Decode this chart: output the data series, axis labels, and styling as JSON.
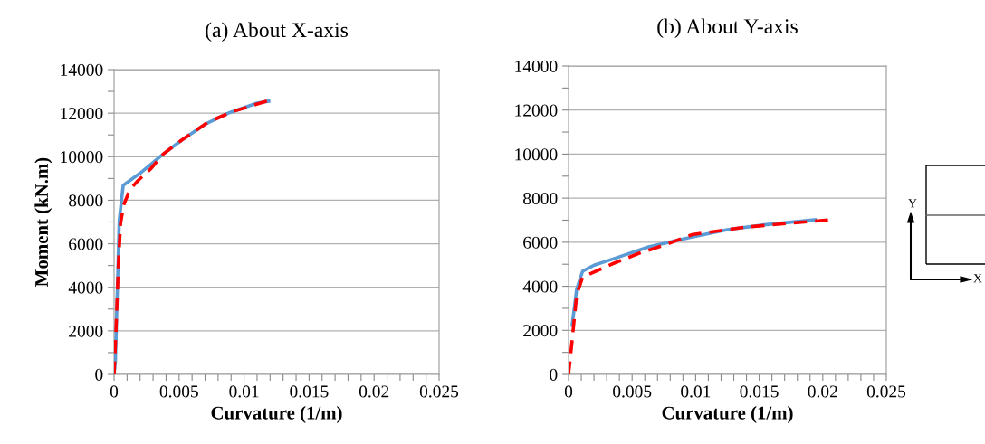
{
  "chart_data": [
    {
      "type": "line",
      "title": "(a) About X-axis",
      "xlabel": "Curvature (1/m)",
      "ylabel": "Moment (kN.m)",
      "grid": "y",
      "legend": false,
      "tick_labels": "xy",
      "xlim": [
        0,
        0.025
      ],
      "ylim": [
        0,
        14000
      ],
      "xticks": [
        0,
        0.005,
        0.01,
        0.015,
        0.02,
        0.025,
        {
          "value": 0.001,
          "label": null
        },
        {
          "value": 0.002,
          "label": null
        },
        {
          "value": 0.003,
          "label": null
        },
        {
          "value": 0.004,
          "label": null
        },
        {
          "value": 0.006,
          "label": null
        },
        {
          "value": 0.007,
          "label": null
        },
        {
          "value": 0.008,
          "label": null
        },
        {
          "value": 0.009,
          "label": null
        },
        {
          "value": 0.011,
          "label": null
        },
        {
          "value": 0.012,
          "label": null
        },
        {
          "value": 0.013,
          "label": null
        },
        {
          "value": 0.014,
          "label": null
        },
        {
          "value": 0.016,
          "label": null
        },
        {
          "value": 0.017,
          "label": null
        },
        {
          "value": 0.018,
          "label": null
        },
        {
          "value": 0.019,
          "label": null
        },
        {
          "value": 0.021,
          "label": null
        },
        {
          "value": 0.022,
          "label": null
        },
        {
          "value": 0.023,
          "label": null
        },
        {
          "value": 0.024,
          "label": null
        }
      ],
      "yticks": [
        0,
        2000,
        4000,
        6000,
        8000,
        10000,
        12000,
        14000,
        {
          "value": 1000,
          "label": null
        },
        {
          "value": 3000,
          "label": null
        },
        {
          "value": 5000,
          "label": null
        },
        {
          "value": 7000,
          "label": null
        },
        {
          "value": 9000,
          "label": null
        },
        {
          "value": 11000,
          "label": null
        },
        {
          "value": 13000,
          "label": null
        }
      ],
      "series": [
        {
          "color": "#5b9bd5",
          "line_style": "solid",
          "x": [
            0,
            0.0001,
            0.0004,
            0.0007,
            0.002,
            0.0038,
            0.0052,
            0.007,
            0.0089,
            0.011,
            0.0119
          ],
          "values": [
            0,
            580,
            7090,
            8680,
            9240,
            10130,
            10760,
            11490,
            12030,
            12460,
            12550
          ]
        },
        {
          "color": "#ff0000",
          "line_style": "dashed",
          "x": [
            0,
            0.00016,
            0.00033,
            0.0005,
            0.00074,
            0.0012,
            0.0018,
            0.0028,
            0.0038,
            0.0052,
            0.0072,
            0.0091,
            0.012
          ],
          "values": [
            0,
            2240,
            5020,
            6950,
            7780,
            8470,
            8880,
            9430,
            10130,
            10760,
            11580,
            12070,
            12600
          ]
        }
      ]
    },
    {
      "type": "line",
      "title": "(b) About Y-axis",
      "xlabel": "Curvature (1/m)",
      "grid": "y",
      "legend": false,
      "tick_labels": "xy",
      "xlim": [
        0,
        0.025
      ],
      "ylim": [
        0,
        14000
      ],
      "xticks": [
        0,
        0.005,
        0.01,
        0.015,
        0.02,
        0.025,
        {
          "value": 0.001,
          "label": null
        },
        {
          "value": 0.002,
          "label": null
        },
        {
          "value": 0.003,
          "label": null
        },
        {
          "value": 0.004,
          "label": null
        },
        {
          "value": 0.006,
          "label": null
        },
        {
          "value": 0.007,
          "label": null
        },
        {
          "value": 0.008,
          "label": null
        },
        {
          "value": 0.009,
          "label": null
        },
        {
          "value": 0.011,
          "label": null
        },
        {
          "value": 0.012,
          "label": null
        },
        {
          "value": 0.013,
          "label": null
        },
        {
          "value": 0.014,
          "label": null
        },
        {
          "value": 0.016,
          "label": null
        },
        {
          "value": 0.017,
          "label": null
        },
        {
          "value": 0.018,
          "label": null
        },
        {
          "value": 0.019,
          "label": null
        },
        {
          "value": 0.021,
          "label": null
        },
        {
          "value": 0.022,
          "label": null
        },
        {
          "value": 0.023,
          "label": null
        },
        {
          "value": 0.024,
          "label": null
        }
      ],
      "yticks": [
        0,
        2000,
        4000,
        6000,
        8000,
        10000,
        12000,
        14000,
        {
          "value": 1000,
          "label": null
        },
        {
          "value": 3000,
          "label": null
        },
        {
          "value": 5000,
          "label": null
        },
        {
          "value": 7000,
          "label": null
        },
        {
          "value": 9000,
          "label": null
        },
        {
          "value": 11000,
          "label": null
        },
        {
          "value": 13000,
          "label": null
        }
      ],
      "annotations": [
        "Y",
        "X"
      ],
      "series": [
        {
          "color": "#5b9bd5",
          "line_style": "solid",
          "x": [
            0.00028,
            0.00064,
            0.00111,
            0.00207,
            0.0035,
            0.0063,
            0.0092,
            0.0125,
            0.0154,
            0.0194
          ],
          "values": [
            2230,
            3870,
            4690,
            4970,
            5240,
            5790,
            6170,
            6570,
            6790,
            7020
          ]
        },
        {
          "color": "#ff0000",
          "line_style": "dashed",
          "x": [
            0,
            0.00028,
            0.00064,
            0.00111,
            0.00168,
            0.0035,
            0.0056,
            0.0075,
            0.0097,
            0.0116,
            0.0139,
            0.0177,
            0.0207
          ],
          "values": [
            0,
            1540,
            3620,
            4420,
            4560,
            5030,
            5510,
            5860,
            6340,
            6500,
            6680,
            6880,
            7020
          ]
        }
      ]
    }
  ]
}
